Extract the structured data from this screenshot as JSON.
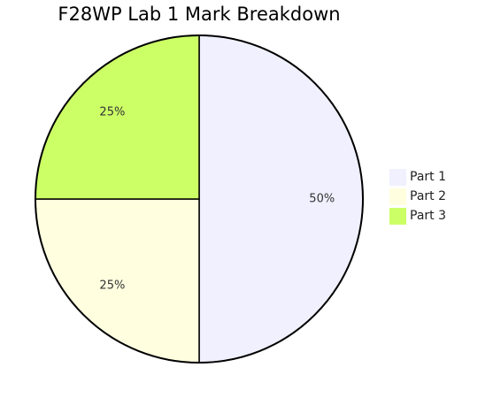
{
  "chart_data": {
    "type": "pie",
    "title": "F28WP Lab 1 Mark Breakdown",
    "categories": [
      "Part 1",
      "Part 2",
      "Part 3"
    ],
    "values": [
      50,
      25,
      25
    ],
    "value_labels": [
      "50%",
      "25%",
      "25%"
    ],
    "colors": [
      "#f0f0ff",
      "#ffffe0",
      "#ccff66"
    ]
  }
}
